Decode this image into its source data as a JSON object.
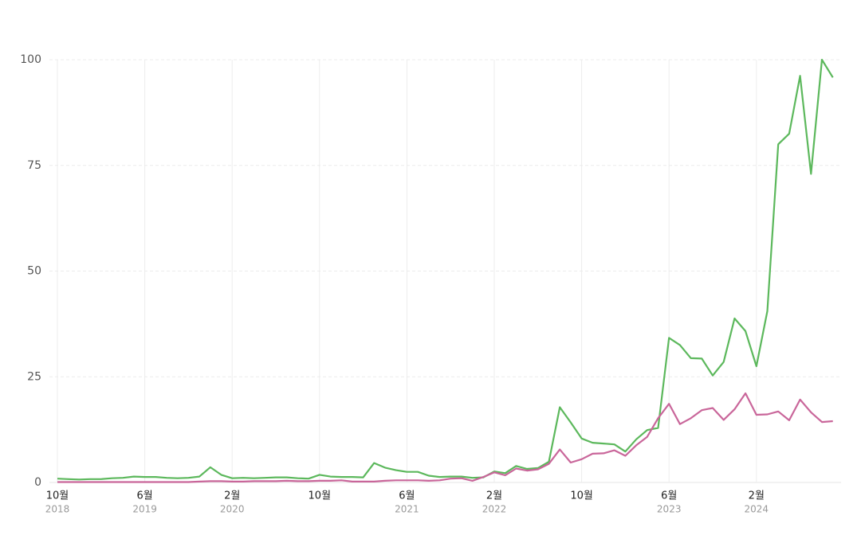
{
  "chart_data": {
    "type": "line",
    "categories": [
      "10월",
      null,
      null,
      null,
      null,
      null,
      null,
      null,
      "6월",
      null,
      null,
      null,
      null,
      null,
      null,
      null,
      "2월",
      null,
      null,
      null,
      null,
      null,
      null,
      null,
      "10월",
      null,
      null,
      null,
      null,
      null,
      null,
      null,
      "6월",
      null,
      null,
      null,
      null,
      null,
      null,
      null,
      "2월",
      null,
      null,
      null,
      null,
      null,
      null,
      null,
      "10월",
      null,
      null,
      null,
      null,
      null,
      null,
      null,
      "6월",
      null,
      null,
      null,
      null,
      null,
      null,
      null,
      "2월",
      null,
      null,
      null,
      null,
      null,
      null,
      null
    ],
    "category_years": [
      "2018",
      null,
      null,
      null,
      null,
      null,
      null,
      null,
      "2019",
      null,
      null,
      null,
      null,
      null,
      null,
      null,
      "2020",
      null,
      null,
      null,
      null,
      null,
      null,
      null,
      null,
      null,
      null,
      null,
      null,
      null,
      null,
      null,
      "2021",
      null,
      null,
      null,
      null,
      null,
      null,
      null,
      "2022",
      null,
      null,
      null,
      null,
      null,
      null,
      null,
      null,
      null,
      null,
      null,
      null,
      null,
      null,
      null,
      "2023",
      null,
      null,
      null,
      null,
      null,
      null,
      null,
      "2024",
      null,
      null,
      null,
      null,
      null,
      null,
      null
    ],
    "series": [
      {
        "color": "#5cb85c",
        "values": [
          0.9,
          0.8,
          0.7,
          0.8,
          0.8,
          1.0,
          1.1,
          1.4,
          1.3,
          1.3,
          1.1,
          1.0,
          1.1,
          1.4,
          3.6,
          1.8,
          1.0,
          1.1,
          1.0,
          1.1,
          1.2,
          1.2,
          1.0,
          0.9,
          1.8,
          1.4,
          1.3,
          1.3,
          1.2,
          4.6,
          3.5,
          2.9,
          2.5,
          2.5,
          1.6,
          1.3,
          1.4,
          1.4,
          1.1,
          1.2,
          2.6,
          2.2,
          3.9,
          3.2,
          3.4,
          4.9,
          17.8,
          14.2,
          10.4,
          9.4,
          9.2,
          9.0,
          7.3,
          10.2,
          12.4,
          12.9,
          34.2,
          32.5,
          29.4,
          29.3,
          25.3,
          28.5,
          38.8,
          35.8,
          27.5,
          40.5,
          80,
          82.5,
          96.2,
          73,
          100,
          95.8
        ]
      },
      {
        "color": "#c9669a",
        "values": [
          0.1,
          0.1,
          0.1,
          0.1,
          0.1,
          0.1,
          0.1,
          0.1,
          0.1,
          0.1,
          0.1,
          0.1,
          0.1,
          0.2,
          0.3,
          0.3,
          0.2,
          0.2,
          0.3,
          0.3,
          0.3,
          0.4,
          0.3,
          0.3,
          0.4,
          0.4,
          0.5,
          0.2,
          0.2,
          0.2,
          0.4,
          0.5,
          0.5,
          0.5,
          0.4,
          0.5,
          0.9,
          1.0,
          0.4,
          1.3,
          2.4,
          1.7,
          3.3,
          2.8,
          3.1,
          4.4,
          7.8,
          4.7,
          5.5,
          6.8,
          6.9,
          7.6,
          6.3,
          8.8,
          10.8,
          15.2,
          18.6,
          13.8,
          15.2,
          17.1,
          17.6,
          14.8,
          17.3,
          21.1,
          16.0,
          16.1,
          16.8,
          14.7,
          19.6,
          16.6,
          14.3,
          14.5
        ]
      }
    ],
    "ylim": [
      0,
      100
    ],
    "yticks": [
      0,
      25,
      50,
      75,
      100
    ],
    "grid": true
  }
}
